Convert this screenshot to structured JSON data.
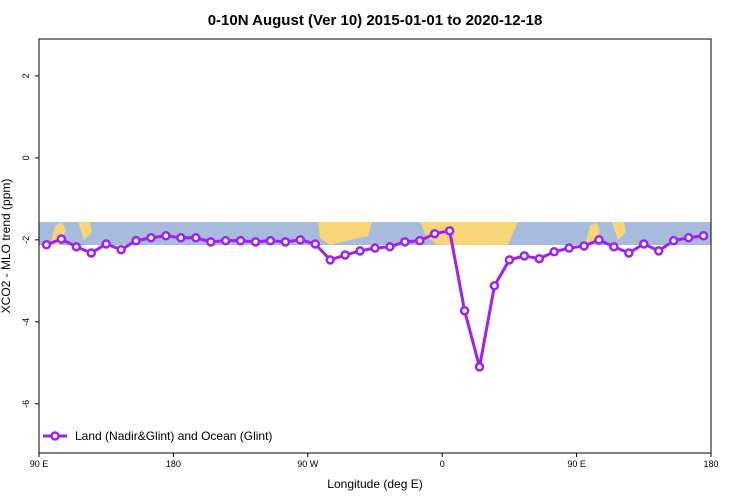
{
  "chart_data": {
    "type": "line",
    "title": "0-10N August (Ver 10)   2015-01-01 to 2020-12-18",
    "xlabel": "Longitude (deg E)",
    "ylabel": "XCO2 - MLO trend (ppm)",
    "x": [
      95,
      105,
      115,
      125,
      135,
      145,
      155,
      165,
      175,
      185,
      195,
      205,
      215,
      225,
      235,
      245,
      255,
      265,
      275,
      285,
      295,
      305,
      315,
      325,
      335,
      345,
      355,
      365,
      375,
      385,
      395,
      405,
      415,
      425,
      435,
      445,
      455,
      465,
      475,
      485,
      495,
      505,
      515,
      525,
      535
    ],
    "series": [
      {
        "name": "Land (Nadir&Glint) and Ocean (Glint)",
        "color": "#a020f0",
        "values": [
          -2.12,
          -1.98,
          -2.17,
          -2.32,
          -2.1,
          -2.24,
          -2.02,
          -1.95,
          -1.9,
          -1.95,
          -1.95,
          -2.05,
          -2.02,
          -2.02,
          -2.05,
          -2.02,
          -2.05,
          -2.0,
          -2.1,
          -2.49,
          -2.37,
          -2.27,
          -2.2,
          -2.17,
          -2.05,
          -2.02,
          -1.85,
          -1.78,
          -3.73,
          -5.1,
          -3.12,
          -2.49,
          -2.39,
          -2.46,
          -2.29,
          -2.2,
          -2.15,
          -2.0,
          -2.17,
          -2.32,
          -2.1,
          -2.27,
          -2.02,
          -1.95,
          -1.9
        ]
      }
    ],
    "xlim": [
      90,
      540
    ],
    "xticks": [
      {
        "value": 90,
        "label": "90 E"
      },
      {
        "value": 180,
        "label": "180"
      },
      {
        "value": 270,
        "label": "90 W"
      },
      {
        "value": 360,
        "label": "0"
      },
      {
        "value": 450,
        "label": "90 E"
      },
      {
        "value": 540,
        "label": "180"
      }
    ],
    "ylim": [
      -7.2,
      2.9
    ],
    "yticks": [
      -6,
      -4,
      -2,
      0,
      2
    ],
    "legend": "bottomleft"
  }
}
